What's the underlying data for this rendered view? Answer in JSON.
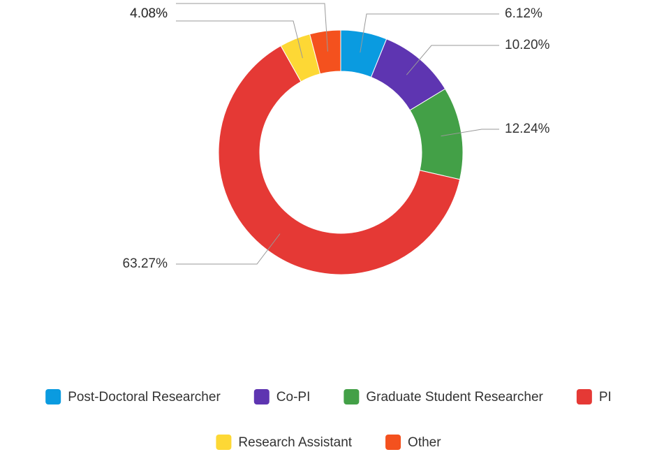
{
  "chart_data": {
    "type": "donut",
    "categories": [
      "Post-Doctoral Researcher",
      "Co-PI",
      "Graduate Student Researcher",
      "PI",
      "Research Assistant",
      "Other"
    ],
    "values": [
      6.12,
      10.2,
      12.24,
      63.27,
      4.08,
      4.08
    ],
    "value_labels": [
      "6.12%",
      "10.20%",
      "12.24%",
      "63.27%",
      "4.08%",
      "4.08%"
    ],
    "colors": [
      "#0a9be0",
      "#5e35b1",
      "#43a047",
      "#e53935",
      "#fdd835",
      "#f4511e"
    ],
    "legend": "bottom"
  }
}
